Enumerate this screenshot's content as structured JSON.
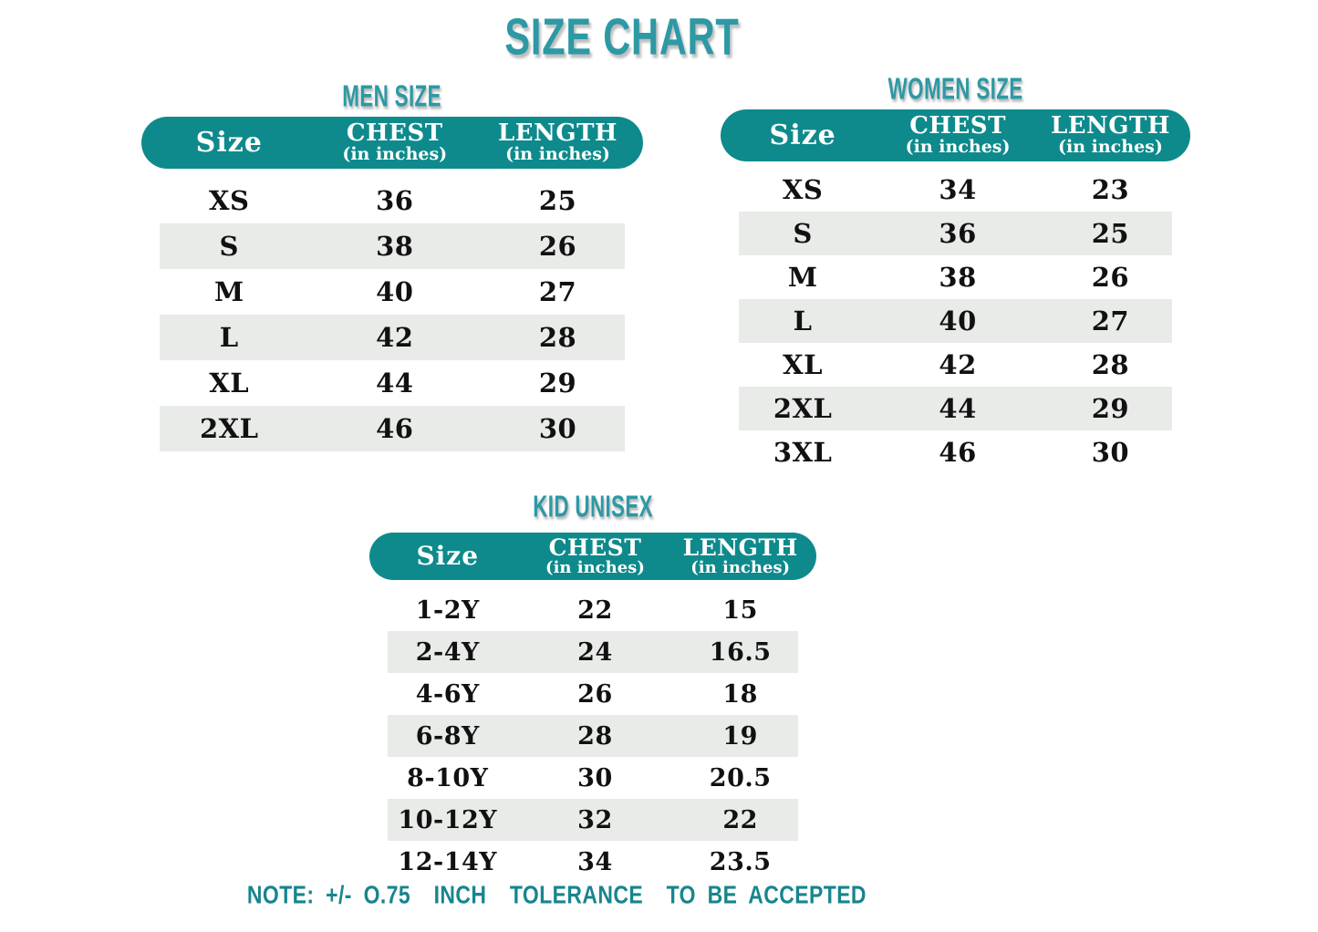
{
  "page": {
    "title": "SIZE CHART",
    "note": "NOTE: +/- O.75  INCH  TOLERANCE  TO BE ACCEPTED"
  },
  "colors": {
    "header_pill_teal": "#0E8A8C",
    "heading_teal": "#2D99A4",
    "note_teal": "#17858E",
    "stripe_gray": "#E8EBE8",
    "body_text": "#111111",
    "background": "#FFFFFF"
  },
  "chart_data": [
    {
      "type": "table",
      "title": "MEN SIZE",
      "columns": [
        {
          "label": "Size",
          "sub": ""
        },
        {
          "label": "CHEST",
          "sub": "(in inches)"
        },
        {
          "label": "LENGTH",
          "sub": "(in inches)"
        }
      ],
      "rows": [
        [
          "XS",
          "36",
          "25"
        ],
        [
          "S",
          "38",
          "26"
        ],
        [
          "M",
          "40",
          "27"
        ],
        [
          "L",
          "42",
          "28"
        ],
        [
          "XL",
          "44",
          "29"
        ],
        [
          "2XL",
          "46",
          "30"
        ]
      ]
    },
    {
      "type": "table",
      "title": "WOMEN SIZE",
      "columns": [
        {
          "label": "Size",
          "sub": ""
        },
        {
          "label": "CHEST",
          "sub": "(in inches)"
        },
        {
          "label": "LENGTH",
          "sub": "(in inches)"
        }
      ],
      "rows": [
        [
          "XS",
          "34",
          "23"
        ],
        [
          "S",
          "36",
          "25"
        ],
        [
          "M",
          "38",
          "26"
        ],
        [
          "L",
          "40",
          "27"
        ],
        [
          "XL",
          "42",
          "28"
        ],
        [
          "2XL",
          "44",
          "29"
        ],
        [
          "3XL",
          "46",
          "30"
        ]
      ]
    },
    {
      "type": "table",
      "title": "KID UNISEX",
      "columns": [
        {
          "label": "Size",
          "sub": ""
        },
        {
          "label": "CHEST",
          "sub": "(in inches)"
        },
        {
          "label": "LENGTH",
          "sub": "(in inches)"
        }
      ],
      "rows": [
        [
          "1-2Y",
          "22",
          "15"
        ],
        [
          "2-4Y",
          "24",
          "16.5"
        ],
        [
          "4-6Y",
          "26",
          "18"
        ],
        [
          "6-8Y",
          "28",
          "19"
        ],
        [
          "8-10Y",
          "30",
          "20.5"
        ],
        [
          "10-12Y",
          "32",
          "22"
        ],
        [
          "12-14Y",
          "34",
          "23.5"
        ]
      ]
    }
  ]
}
